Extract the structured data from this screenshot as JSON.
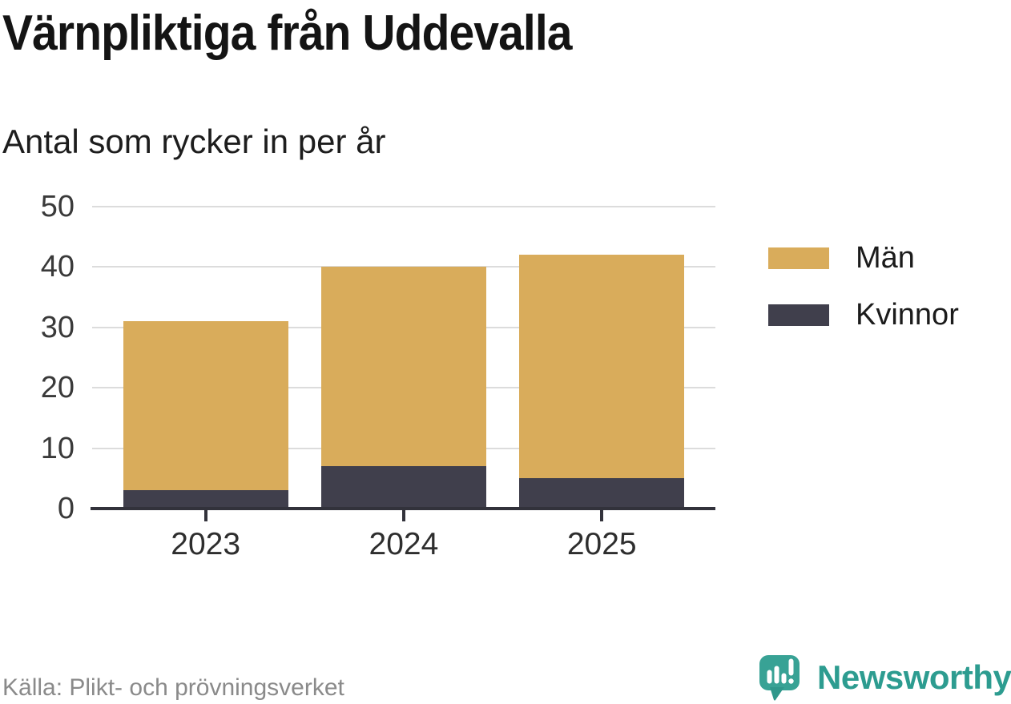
{
  "header": {
    "title": "Värnpliktiga från Uddevalla",
    "subtitle": "Antal som rycker in per år"
  },
  "chart_data": {
    "type": "bar",
    "stacked": true,
    "title": "Värnpliktiga från Uddevalla",
    "subtitle": "Antal som rycker in per år",
    "xlabel": "",
    "ylabel": "",
    "categories": [
      "2023",
      "2024",
      "2025"
    ],
    "series": [
      {
        "name": "Män",
        "color": "#d9ac5b",
        "stack": "top",
        "values": [
          28,
          33,
          37
        ]
      },
      {
        "name": "Kvinnor",
        "color": "#403f4c",
        "stack": "bottom",
        "values": [
          3,
          7,
          5
        ]
      }
    ],
    "totals": [
      31,
      40,
      42
    ],
    "ylim": [
      0,
      50
    ],
    "yticks": [
      0,
      10,
      20,
      30,
      40,
      50
    ],
    "grid": true,
    "legend_position": "right"
  },
  "legend": {
    "items": [
      {
        "label": "Män",
        "color": "#d9ac5b"
      },
      {
        "label": "Kvinnor",
        "color": "#403f4c"
      }
    ]
  },
  "footer": {
    "source": "Källa: Plikt- och prövningsverket",
    "brand": "Newsworthy"
  },
  "colors": {
    "background": "#ffffff",
    "men": "#d9ac5b",
    "women": "#403f4c",
    "axis": "#32323b",
    "grid": "#dcdcdc",
    "ytick_label": "#3a3a3a",
    "xtick_label": "#2e2e2e",
    "title_text": "#141414",
    "source_text": "#8a8a8a",
    "brand_teal": "#2d9c90",
    "brand_bubble": "#38a295"
  }
}
